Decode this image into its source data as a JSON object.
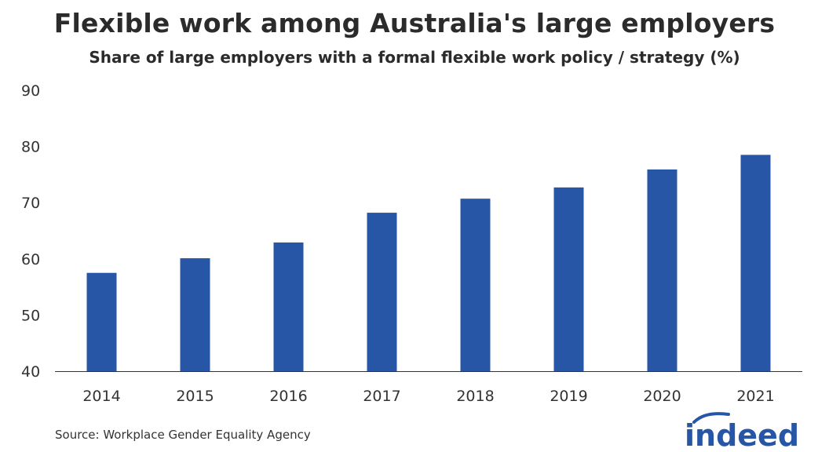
{
  "chart_data": {
    "type": "bar",
    "title": "Flexible work among Australia's large employers",
    "subtitle": "Share of large employers with a formal flexible work policy / strategy (%)",
    "categories": [
      "2014",
      "2015",
      "2016",
      "2017",
      "2018",
      "2019",
      "2020",
      "2021"
    ],
    "values": [
      57.5,
      60.1,
      62.9,
      68.2,
      70.7,
      72.7,
      75.9,
      78.5
    ],
    "ylim": [
      40,
      90
    ],
    "yticks": [
      40,
      50,
      60,
      70,
      80,
      90
    ],
    "xlabel": "",
    "ylabel": "",
    "grid": false,
    "bar_color": "#2656a5"
  },
  "source": "Source: Workplace Gender Equality Agency",
  "logo": {
    "text": "indeed",
    "color": "#2656a5"
  }
}
